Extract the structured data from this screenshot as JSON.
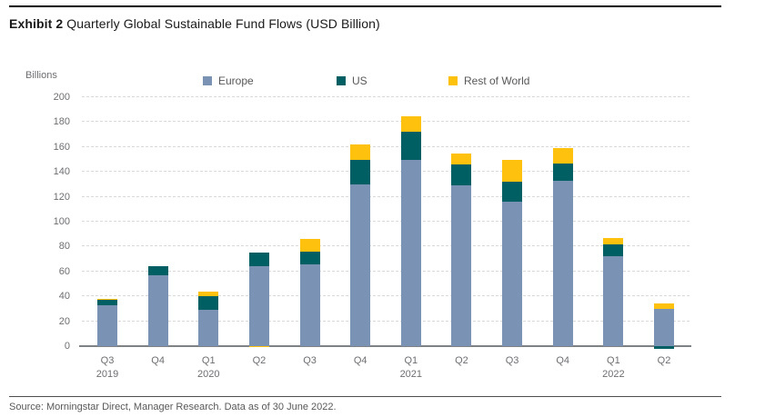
{
  "header": {
    "exhibit_label": "Exhibit 2",
    "title": " Quarterly Global Sustainable Fund Flows (USD Billion)"
  },
  "footer": {
    "source": "Source: Morningstar Direct, Manager Research. Data as of 30 June 2022."
  },
  "chart_data": {
    "type": "bar",
    "stacked": true,
    "title": "Quarterly Global Sustainable Fund Flows (USD Billion)",
    "ylabel": "Billions",
    "xlabel": "",
    "ylim": [
      0,
      200
    ],
    "yticks": [
      0,
      20,
      40,
      60,
      80,
      100,
      120,
      140,
      160,
      180,
      200
    ],
    "grid": "horizontal-dashed",
    "legend_position": "top",
    "categories": [
      "Q3",
      "Q4",
      "Q1",
      "Q2",
      "Q3",
      "Q4",
      "Q1",
      "Q2",
      "Q3",
      "Q4",
      "Q1",
      "Q2"
    ],
    "year_labels": [
      "2019",
      "",
      "2020",
      "",
      "",
      "",
      "2021",
      "",
      "",
      "",
      "2022",
      ""
    ],
    "series": [
      {
        "name": "Europe",
        "color": "#7a93b5",
        "values": [
          33,
          57,
          29,
          64,
          66,
          130,
          150,
          129,
          116,
          133,
          72,
          30
        ]
      },
      {
        "name": "US",
        "color": "#005f62",
        "values": [
          4,
          7,
          11,
          11,
          10,
          20,
          22,
          17,
          16,
          14,
          10,
          -2
        ]
      },
      {
        "name": "Rest of World",
        "color": "#fec10e",
        "values": [
          1,
          0,
          4,
          -1,
          10,
          12,
          13,
          9,
          18,
          12,
          5,
          4
        ]
      }
    ],
    "totals_approx": [
      38,
      64,
      44,
      74,
      86,
      162,
      185,
      155,
      150,
      159,
      87,
      32
    ]
  },
  "colors": {
    "gridline": "#d9d9d9",
    "axis_line": "#7f8284",
    "text_gray": "#6d6e71",
    "title_black": "#1a1a1a"
  }
}
